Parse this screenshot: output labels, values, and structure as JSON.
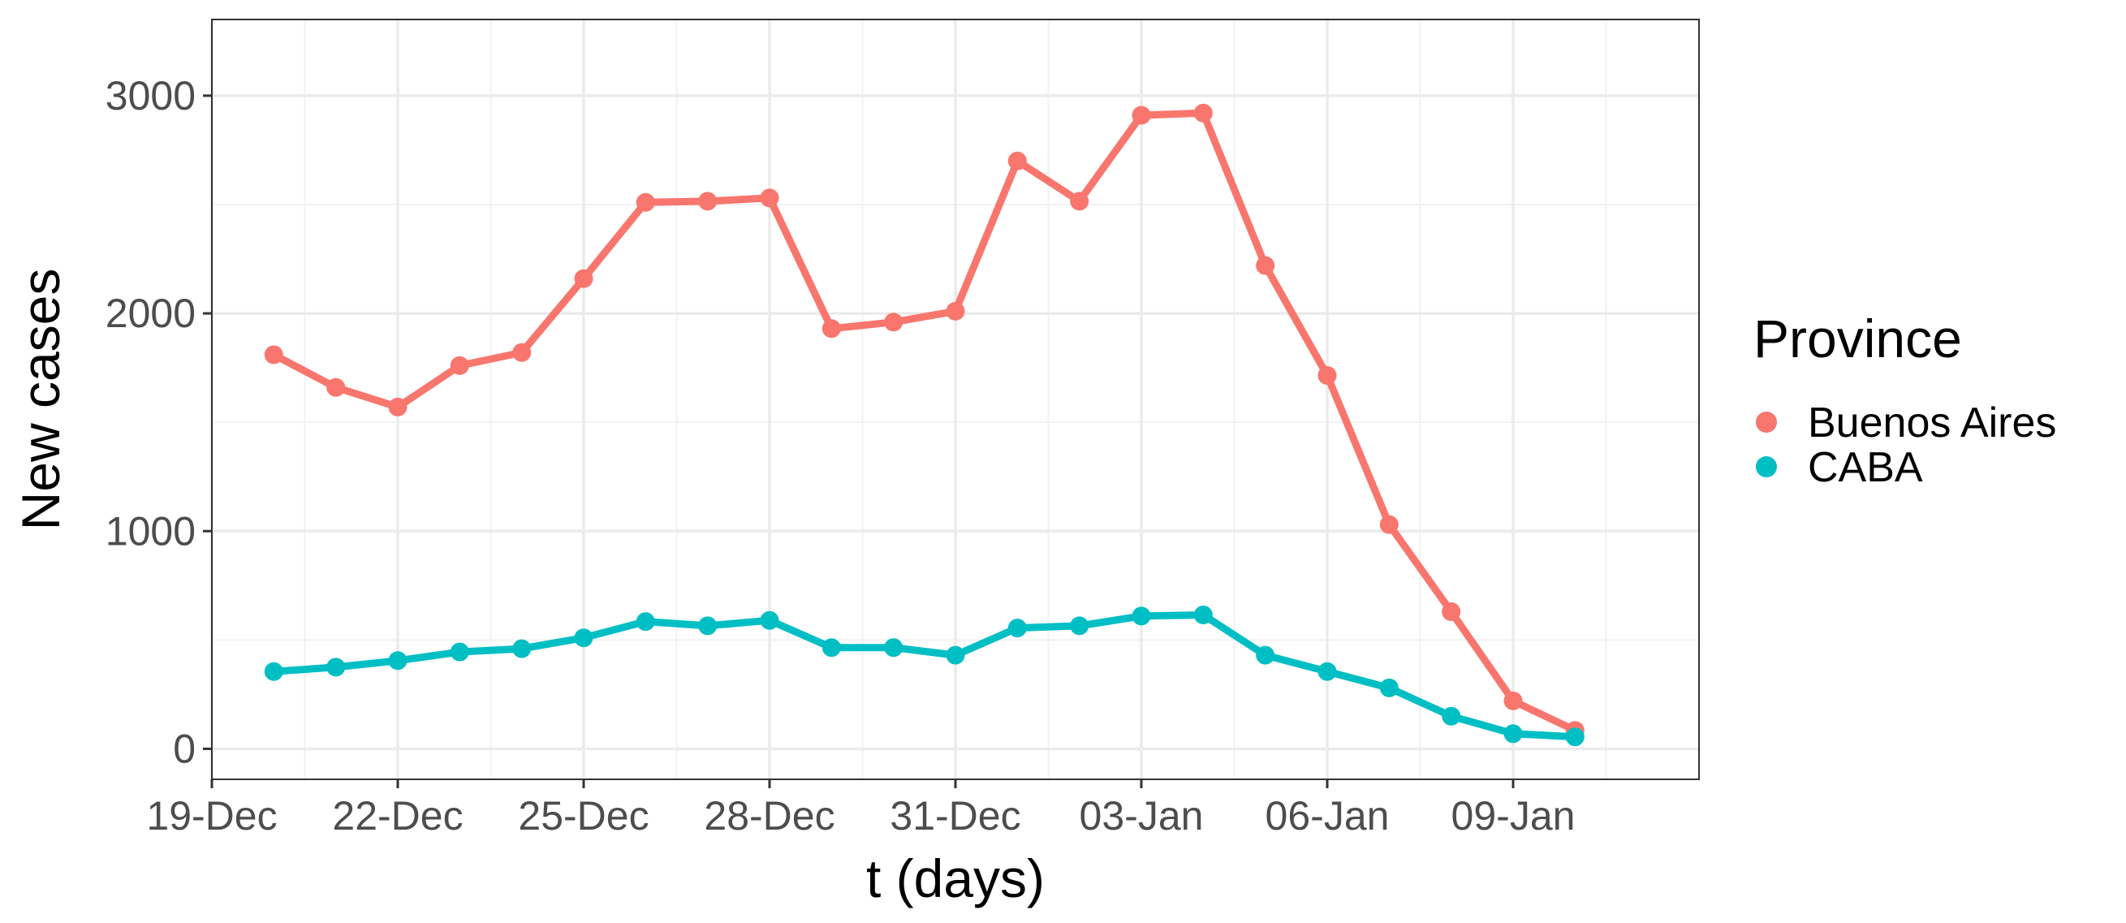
{
  "chart_data": {
    "type": "line",
    "xlabel": "t (days)",
    "ylabel": "New cases",
    "x_range": [
      "2021-12-19",
      "2022-01-12"
    ],
    "ylim": [
      -140,
      3350
    ],
    "x_ticks": [
      {
        "date": "2021-12-19",
        "label": "19-Dec"
      },
      {
        "date": "2021-12-22",
        "label": "22-Dec"
      },
      {
        "date": "2021-12-25",
        "label": "25-Dec"
      },
      {
        "date": "2021-12-28",
        "label": "28-Dec"
      },
      {
        "date": "2021-12-31",
        "label": "31-Dec"
      },
      {
        "date": "2022-01-03",
        "label": "03-Jan"
      },
      {
        "date": "2022-01-06",
        "label": "06-Jan"
      },
      {
        "date": "2022-01-09",
        "label": "09-Jan"
      }
    ],
    "y_ticks": [
      {
        "value": 0,
        "label": "0"
      },
      {
        "value": 1000,
        "label": "1000"
      },
      {
        "value": 2000,
        "label": "2000"
      },
      {
        "value": 3000,
        "label": "3000"
      }
    ],
    "y_minor_ticks": [
      500,
      1500,
      2500
    ],
    "grid": true,
    "legend": {
      "title": "Province",
      "position": "right"
    },
    "x": [
      "2021-12-20",
      "2021-12-21",
      "2021-12-22",
      "2021-12-23",
      "2021-12-24",
      "2021-12-25",
      "2021-12-26",
      "2021-12-27",
      "2021-12-28",
      "2021-12-29",
      "2021-12-30",
      "2021-12-31",
      "2022-01-01",
      "2022-01-02",
      "2022-01-03",
      "2022-01-04",
      "2022-01-05",
      "2022-01-06",
      "2022-01-07",
      "2022-01-08",
      "2022-01-09",
      "2022-01-10"
    ],
    "series": [
      {
        "name": "Buenos Aires",
        "color": "#F8766D",
        "values": [
          1810,
          1660,
          1570,
          1760,
          1820,
          2160,
          2510,
          2515,
          2530,
          1930,
          1960,
          2010,
          2700,
          2515,
          2910,
          2920,
          2220,
          1715,
          1030,
          630,
          220,
          85
        ]
      },
      {
        "name": "CABA",
        "color": "#00BFC4",
        "values": [
          355,
          375,
          405,
          445,
          460,
          510,
          585,
          565,
          590,
          465,
          465,
          430,
          555,
          565,
          610,
          615,
          430,
          355,
          280,
          150,
          70,
          55
        ]
      }
    ]
  }
}
